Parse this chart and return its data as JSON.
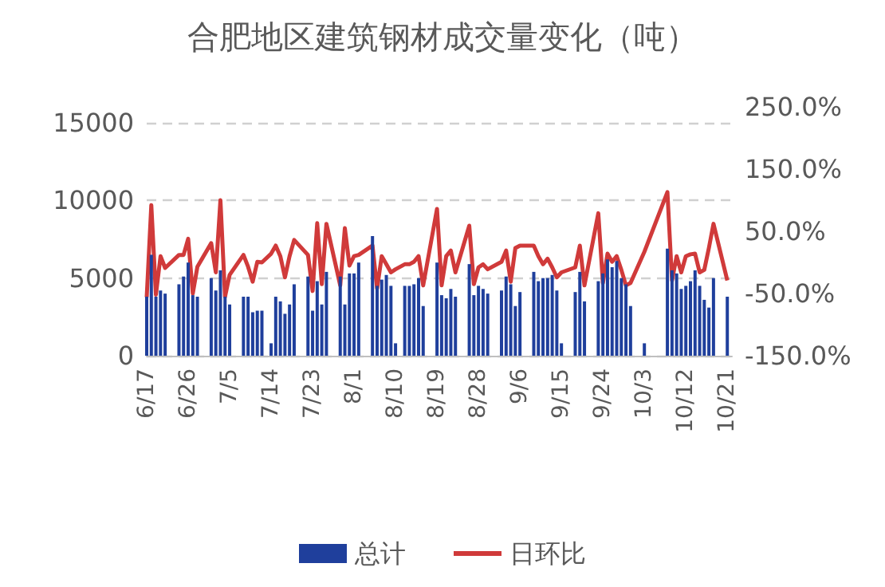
{
  "chart_data": {
    "type": "bar",
    "title": "合肥地区建筑钢材成交量变化（吨）",
    "x": [
      "--06-17",
      "--06-18",
      "--06-19",
      "--06-20",
      "--06-21",
      "--06-24",
      "--06-25",
      "--06-26",
      "--06-27",
      "--06-28",
      "--07-01",
      "--07-02",
      "--07-03",
      "--07-04",
      "--07-05",
      "--07-08",
      "--07-09",
      "--07-10",
      "--07-11",
      "--07-12",
      "--07-14",
      "--07-15",
      "--07-16",
      "--07-17",
      "--07-18",
      "--07-19",
      "--07-22",
      "--07-23",
      "--07-24",
      "--07-25",
      "--07-26",
      "--07-29",
      "--07-30",
      "--07-31",
      "--08-01",
      "--08-02",
      "--08-05",
      "--08-06",
      "--08-07",
      "--08-08",
      "--08-09",
      "--08-10",
      "--08-12",
      "--08-13",
      "--08-14",
      "--08-15",
      "--08-16",
      "--08-19",
      "--08-20",
      "--08-21",
      "--08-22",
      "--08-23",
      "--08-26",
      "--08-27",
      "--08-28",
      "--08-29",
      "--08-30",
      "--09-02",
      "--09-03",
      "--09-04",
      "--09-05",
      "--09-06",
      "--09-09",
      "--09-10",
      "--09-11",
      "--09-12",
      "--09-13",
      "--09-14",
      "--09-15",
      "--09-18",
      "--09-19",
      "--09-20",
      "--09-23",
      "--09-24",
      "--09-25",
      "--09-26",
      "--09-27",
      "--09-28",
      "--09-29",
      "--09-30",
      "--10-03",
      "--10-08",
      "--10-09",
      "--10-10",
      "--10-11",
      "--10-12",
      "--10-13",
      "--10-14",
      "--10-15",
      "--10-16",
      "--10-17",
      "--10-18",
      "--10-21"
    ],
    "series": [
      {
        "name": "总计",
        "color": "#1f3f9c",
        "values": [
          3800,
          6500,
          3800,
          4200,
          4000,
          4600,
          5100,
          6000,
          3900,
          3800,
          5000,
          4200,
          5500,
          3800,
          3300,
          3800,
          3800,
          2800,
          2900,
          2900,
          800,
          3800,
          3500,
          2700,
          3300,
          4600,
          5100,
          2900,
          4800,
          3300,
          5400,
          5100,
          3300,
          5300,
          5300,
          6000,
          7700,
          4500,
          4900,
          5200,
          4500,
          800,
          4500,
          4500,
          4600,
          5000,
          3200,
          6000,
          3900,
          3700,
          4300,
          3800,
          5900,
          3900,
          4500,
          4300,
          4000,
          4200,
          5100,
          4600,
          3200,
          4100,
          5400,
          4800,
          5000,
          5000,
          5200,
          4200,
          800,
          4100,
          5400,
          3500,
          4800,
          5300,
          6200,
          5700,
          6100,
          5000,
          4600,
          3200,
          800,
          6900,
          5500,
          5300,
          4300,
          4500,
          4800,
          5500,
          4500,
          3600,
          3100,
          5000,
          3800
        ]
      },
      {
        "name": "日环比",
        "type": "line",
        "axis": "y2",
        "color": "#d03a3a",
        "values": [
          -56,
          92,
          -52,
          10,
          -9,
          12,
          12,
          38,
          -50,
          -7,
          31,
          -16,
          100,
          -55,
          -20,
          12,
          -7,
          -31,
          1,
          0,
          14,
          27,
          10,
          -24,
          10,
          36,
          12,
          -46,
          63,
          -35,
          62,
          -37,
          55,
          -5,
          10,
          12,
          27,
          -42,
          10,
          -3,
          -16,
          -11,
          -3,
          -3,
          1,
          10,
          -37,
          86,
          -37,
          10,
          19,
          -16,
          59,
          -35,
          -8,
          -3,
          -11,
          1,
          19,
          -31,
          23,
          27,
          27,
          10,
          -3,
          6,
          -8,
          -24,
          -16,
          -8,
          27,
          -37,
          79,
          -33,
          14,
          1,
          10,
          -12,
          -37,
          -33,
          17,
          113,
          -29,
          10,
          -16,
          10,
          13,
          14,
          -16,
          -12,
          23,
          62,
          -29
        ]
      }
    ],
    "xlim": [
      "--06-17",
      "--10-22"
    ],
    "xticks": [
      {
        "value": "--06-17",
        "label": "6/17"
      },
      {
        "value": "--06-26",
        "label": "6/26"
      },
      {
        "value": "--07-05",
        "label": "7/5"
      },
      {
        "value": "--07-14",
        "label": "7/14"
      },
      {
        "value": "--07-23",
        "label": "7/23"
      },
      {
        "value": "--08-01",
        "label": "8/1"
      },
      {
        "value": "--08-10",
        "label": "8/10"
      },
      {
        "value": "--08-19",
        "label": "8/19"
      },
      {
        "value": "--08-28",
        "label": "8/28"
      },
      {
        "value": "--09-06",
        "label": "9/6"
      },
      {
        "value": "--09-15",
        "label": "9/15"
      },
      {
        "value": "--09-24",
        "label": "9/24"
      },
      {
        "value": "--10-03",
        "label": "10/3"
      },
      {
        "value": "--10-12",
        "label": "10/12"
      },
      {
        "value": "--10-21",
        "label": "10/21"
      }
    ],
    "ylim": [
      0,
      15000
    ],
    "yticks": [
      0,
      5000,
      10000,
      15000
    ],
    "y2lim": [
      -150,
      250
    ],
    "y2ticks": [
      {
        "value": -150,
        "label": "-150.0%"
      },
      {
        "value": -50,
        "label": "-50.0%"
      },
      {
        "value": 50,
        "label": "50.0%"
      },
      {
        "value": 150,
        "label": "150.0%"
      },
      {
        "value": 250,
        "label": "250.0%"
      }
    ],
    "grid": "y",
    "legend": "bottom",
    "marker": "none"
  }
}
